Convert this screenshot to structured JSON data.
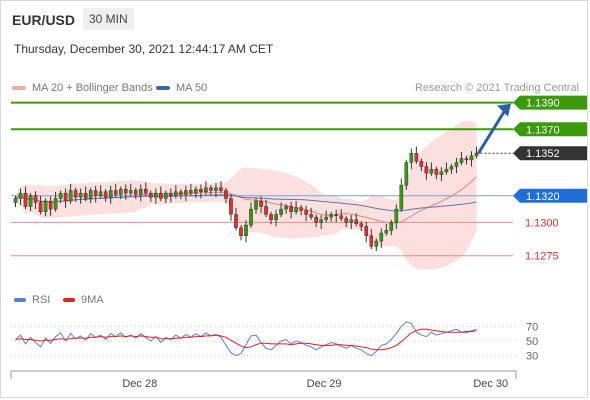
{
  "header": {
    "symbol": "EUR/USD",
    "interval": "30 MIN",
    "datetime": "Thursday, December 30, 2021 12:44:17 AM CET"
  },
  "legend": {
    "bollinger_label": "MA 20 + Bollinger Bands",
    "bollinger_color": "#f4a7a7",
    "ma50_label": "MA 50",
    "ma50_color": "#3d6aa6"
  },
  "credit": "Research © 2021 Trading Central",
  "rsi_legend": {
    "rsi_label": "RSI",
    "rsi_color": "#5b7fd6",
    "ma_label": "9MA",
    "ma_color": "#e02020"
  },
  "chart_data": [
    {
      "type": "candlestick",
      "title": "",
      "ylim": [
        1.1265,
        1.1395
      ],
      "xticks": [
        "Dec 28",
        "Dec 29",
        "Dec 30"
      ],
      "levels": [
        {
          "label": "1.1390",
          "value": 1.139,
          "kind": "resistance",
          "color": "#3a9a0c"
        },
        {
          "label": "1.1370",
          "value": 1.137,
          "kind": "resistance",
          "color": "#3a9a0c"
        },
        {
          "label": "1.1352",
          "value": 1.1352,
          "kind": "last-price",
          "color": "#333333"
        },
        {
          "label": "1.1320",
          "value": 1.132,
          "kind": "pivot",
          "color": "#1f6fd6"
        },
        {
          "label": "1.1300",
          "value": 1.13,
          "kind": "support",
          "color": "#e03030"
        },
        {
          "label": "1.1275",
          "value": 1.1275,
          "kind": "support",
          "color": "#e03030"
        }
      ],
      "close_series": [
        1.1318,
        1.1322,
        1.1312,
        1.132,
        1.1315,
        1.1308,
        1.1316,
        1.131,
        1.1318,
        1.1322,
        1.1316,
        1.1324,
        1.1319,
        1.1322,
        1.1318,
        1.1324,
        1.132,
        1.1323,
        1.1319,
        1.1324,
        1.1321,
        1.1325,
        1.1322,
        1.1324,
        1.1321,
        1.1325,
        1.1322,
        1.1319,
        1.1322,
        1.1318,
        1.1322,
        1.132,
        1.1323,
        1.1321,
        1.1324,
        1.1322,
        1.1325,
        1.1323,
        1.1326,
        1.1324,
        1.1326,
        1.1324,
        1.1318,
        1.1306,
        1.1296,
        1.129,
        1.1298,
        1.131,
        1.1316,
        1.1312,
        1.1306,
        1.1302,
        1.1306,
        1.131,
        1.1312,
        1.1308,
        1.1311,
        1.1309,
        1.1306,
        1.1304,
        1.13,
        1.1302,
        1.1304,
        1.1306,
        1.1305,
        1.1303,
        1.13,
        1.1302,
        1.1299,
        1.1297,
        1.129,
        1.1282,
        1.1286,
        1.1292,
        1.1294,
        1.13,
        1.131,
        1.1328,
        1.1345,
        1.1352,
        1.1346,
        1.1342,
        1.1337,
        1.134,
        1.1336,
        1.1338,
        1.134,
        1.1342,
        1.1345,
        1.1348,
        1.1347,
        1.135,
        1.1352
      ],
      "arrow": {
        "from": 1.1352,
        "to": 1.139,
        "direction": "up"
      }
    },
    {
      "type": "line",
      "title": "",
      "ylim": [
        20,
        80
      ],
      "yticks": [
        70,
        50,
        30
      ],
      "series": [
        {
          "name": "RSI",
          "values": [
            52,
            58,
            46,
            55,
            48,
            42,
            54,
            47,
            56,
            61,
            50,
            60,
            53,
            57,
            51,
            60,
            55,
            58,
            52,
            60,
            56,
            61,
            55,
            58,
            54,
            60,
            55,
            50,
            56,
            48,
            55,
            52,
            58,
            54,
            59,
            55,
            60,
            56,
            61,
            57,
            59,
            55,
            44,
            34,
            30,
            33,
            45,
            57,
            58,
            48,
            40,
            38,
            44,
            50,
            52,
            46,
            50,
            48,
            44,
            42,
            38,
            42,
            45,
            48,
            46,
            43,
            40,
            44,
            40,
            38,
            33,
            30,
            36,
            44,
            46,
            52,
            60,
            70,
            76,
            74,
            62,
            58,
            56,
            62,
            58,
            60,
            62,
            64,
            66,
            62,
            61,
            64,
            66
          ]
        },
        {
          "name": "9MA",
          "values": [
            52,
            53,
            52,
            52,
            51,
            50,
            51,
            51,
            52,
            53,
            52,
            53,
            54,
            54,
            54,
            55,
            55,
            56,
            55,
            56,
            56,
            57,
            56,
            57,
            56,
            57,
            56,
            55,
            55,
            53,
            53,
            53,
            54,
            54,
            55,
            55,
            56,
            56,
            57,
            57,
            58,
            57,
            55,
            51,
            47,
            43,
            41,
            42,
            45,
            47,
            47,
            46,
            46,
            46,
            46,
            45,
            46,
            47,
            47,
            46,
            45,
            44,
            44,
            44,
            45,
            45,
            44,
            44,
            43,
            42,
            41,
            39,
            38,
            38,
            39,
            41,
            44,
            49,
            55,
            61,
            64,
            66,
            66,
            65,
            64,
            63,
            62,
            62,
            62,
            62,
            63,
            63,
            64
          ]
        }
      ]
    }
  ]
}
